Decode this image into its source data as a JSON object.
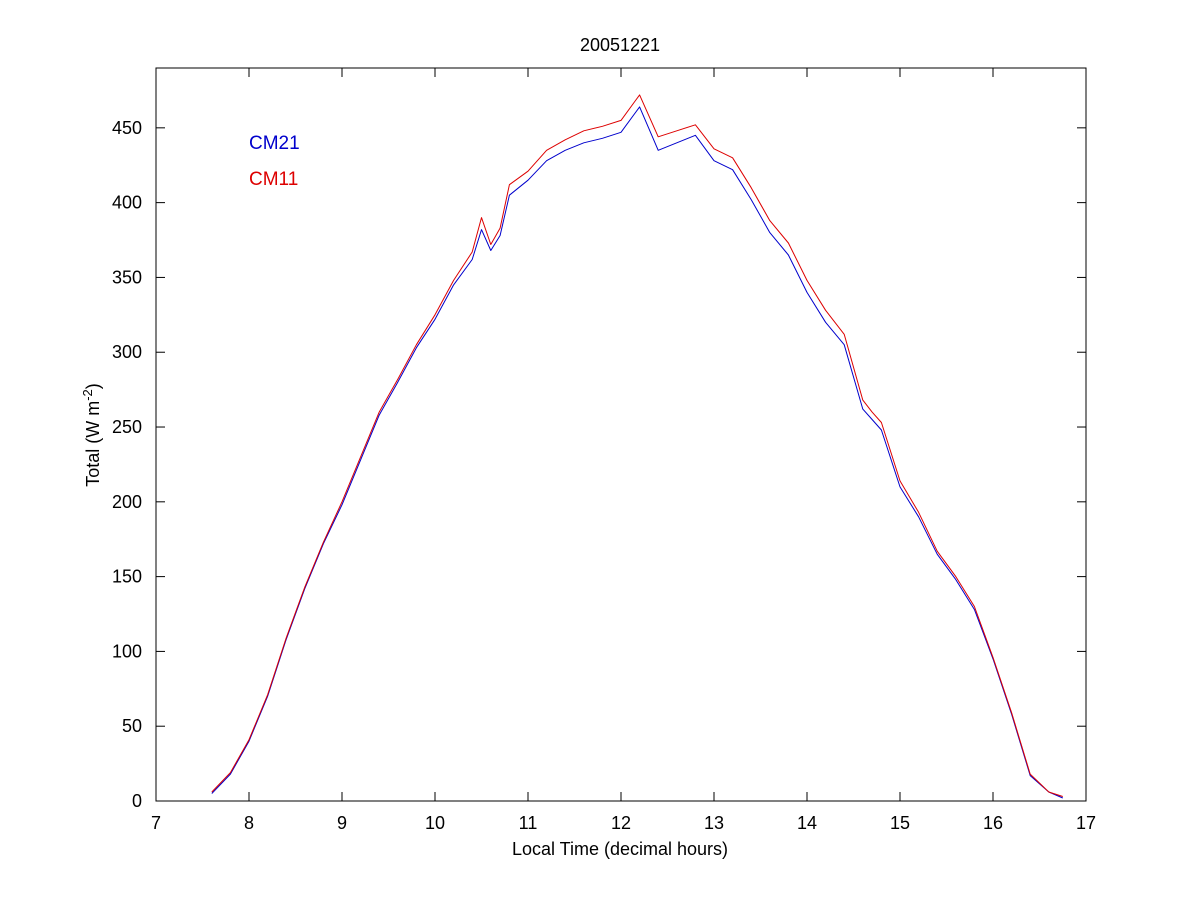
{
  "chart_data": {
    "type": "line",
    "title": "20051221",
    "xlabel": "Local Time (decimal hours)",
    "ylabel": {
      "main": "Total (W m",
      "superscript": "-2",
      "close": ")"
    },
    "xlim": [
      7,
      17
    ],
    "ylim": [
      0,
      490
    ],
    "xticks": [
      "7",
      "8",
      "9",
      "10",
      "11",
      "12",
      "13",
      "14",
      "15",
      "16",
      "17"
    ],
    "yticks": [
      "0",
      "50",
      "100",
      "150",
      "200",
      "250",
      "300",
      "350",
      "400",
      "450"
    ],
    "grid": false,
    "legend_position": "top-left",
    "series": [
      {
        "name": "CM21",
        "color": "#0000cc",
        "x": [
          7.6,
          7.8,
          8.0,
          8.2,
          8.4,
          8.6,
          8.8,
          9.0,
          9.2,
          9.4,
          9.6,
          9.8,
          10.0,
          10.2,
          10.4,
          10.5,
          10.6,
          10.7,
          10.8,
          11.0,
          11.2,
          11.4,
          11.6,
          11.8,
          12.0,
          12.2,
          12.4,
          12.6,
          12.8,
          13.0,
          13.2,
          13.4,
          13.6,
          13.8,
          14.0,
          14.2,
          14.4,
          14.6,
          14.7,
          14.8,
          15.0,
          15.2,
          15.4,
          15.6,
          15.8,
          16.0,
          16.2,
          16.4,
          16.6,
          16.75
        ],
        "y": [
          5,
          18,
          40,
          70,
          108,
          142,
          172,
          198,
          228,
          258,
          280,
          303,
          322,
          345,
          362,
          382,
          368,
          378,
          405,
          415,
          428,
          435,
          440,
          443,
          447,
          464,
          435,
          440,
          445,
          428,
          422,
          402,
          380,
          365,
          340,
          320,
          305,
          262,
          255,
          248,
          210,
          190,
          165,
          148,
          128,
          95,
          58,
          17,
          6,
          2
        ]
      },
      {
        "name": "CM11",
        "color": "#dd0000",
        "x": [
          7.6,
          7.8,
          8.0,
          8.2,
          8.4,
          8.6,
          8.8,
          9.0,
          9.2,
          9.4,
          9.6,
          9.8,
          10.0,
          10.2,
          10.4,
          10.5,
          10.6,
          10.7,
          10.8,
          11.0,
          11.2,
          11.4,
          11.6,
          11.8,
          12.0,
          12.2,
          12.4,
          12.6,
          12.8,
          13.0,
          13.2,
          13.4,
          13.6,
          13.8,
          14.0,
          14.2,
          14.4,
          14.6,
          14.7,
          14.8,
          15.0,
          15.2,
          15.4,
          15.6,
          15.8,
          16.0,
          16.2,
          16.4,
          16.6,
          16.75
        ],
        "y": [
          6,
          19,
          41,
          71,
          109,
          143,
          173,
          200,
          230,
          260,
          282,
          305,
          325,
          348,
          367,
          390,
          372,
          383,
          412,
          421,
          435,
          442,
          448,
          451,
          455,
          472,
          444,
          448,
          452,
          436,
          430,
          410,
          388,
          373,
          348,
          328,
          312,
          268,
          260,
          253,
          214,
          193,
          167,
          150,
          130,
          96,
          59,
          18,
          6,
          3
        ]
      }
    ]
  }
}
